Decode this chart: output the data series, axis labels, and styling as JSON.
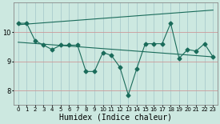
{
  "background_color": "#cce8e0",
  "plot_bg_color": "#cce8e0",
  "grid_color": "#aacccc",
  "line_color": "#1a6b5a",
  "xlabel": "Humidex (Indice chaleur)",
  "xlabel_fontsize": 7,
  "ylim": [
    7.5,
    11.0
  ],
  "xlim": [
    -0.5,
    23.5
  ],
  "yticks": [
    8,
    9,
    10
  ],
  "xticks": [
    0,
    1,
    2,
    3,
    4,
    5,
    6,
    7,
    8,
    9,
    10,
    11,
    12,
    13,
    14,
    15,
    16,
    17,
    18,
    19,
    20,
    21,
    22,
    23
  ],
  "line1_x": [
    0,
    1,
    2,
    3,
    4,
    5,
    6,
    7,
    8,
    9,
    10,
    11,
    12,
    13,
    14,
    15,
    16,
    17,
    18,
    19,
    20,
    21,
    22,
    23
  ],
  "line1_y": [
    10.3,
    10.3,
    9.7,
    9.55,
    9.4,
    9.55,
    9.55,
    9.55,
    8.65,
    8.65,
    9.3,
    9.2,
    8.8,
    7.85,
    8.75,
    9.6,
    9.6,
    9.6,
    10.3,
    9.1,
    9.4,
    9.35,
    9.6,
    9.15
  ],
  "line2_x": [
    0,
    23
  ],
  "line2_y": [
    10.25,
    10.75
  ],
  "line3_x": [
    0,
    23
  ],
  "line3_y": [
    9.65,
    9.15
  ],
  "marker": "D",
  "marker_size": 2.5,
  "line_width": 0.8
}
